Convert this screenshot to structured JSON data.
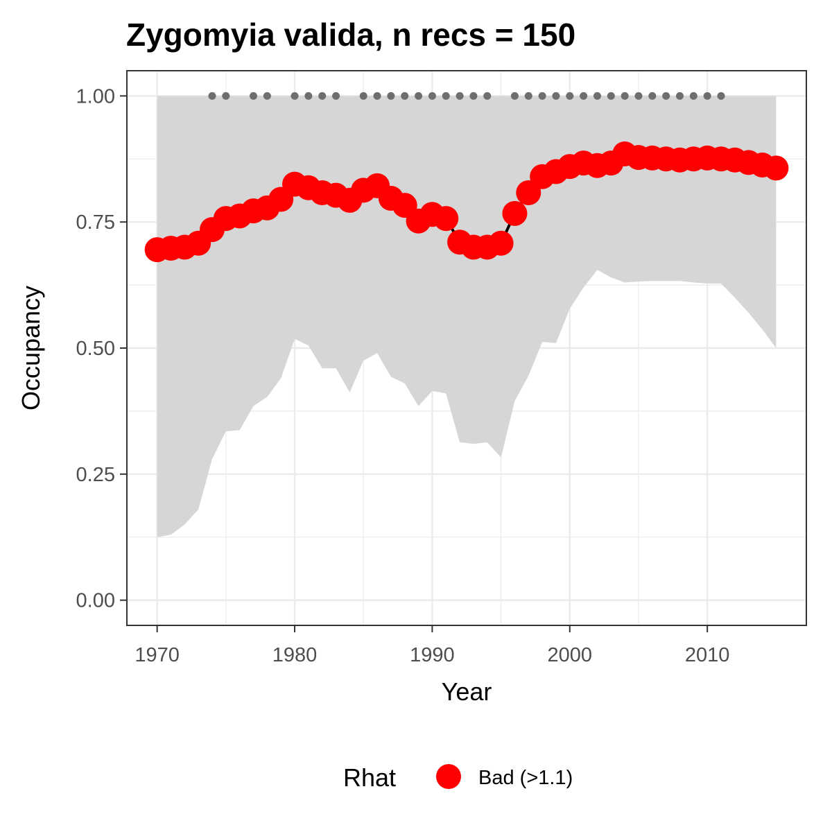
{
  "chart_data": {
    "type": "line",
    "title": "Zygomyia valida, n recs = 150",
    "xlabel": "Year",
    "ylabel": "Occupancy",
    "xlim": [
      1967.8,
      2017.2
    ],
    "ylim": [
      -0.05,
      1.05
    ],
    "x_ticks": [
      1970,
      1980,
      1990,
      2000,
      2010
    ],
    "x_tick_labels": [
      "1970",
      "1980",
      "1990",
      "2000",
      "2010"
    ],
    "y_ticks": [
      0,
      0.25,
      0.5,
      0.75,
      1.0
    ],
    "y_tick_labels": [
      "0.00",
      "0.25",
      "0.50",
      "0.75",
      "1.00"
    ],
    "grid": true,
    "years": [
      1970,
      1971,
      1972,
      1973,
      1974,
      1975,
      1976,
      1977,
      1978,
      1979,
      1980,
      1981,
      1982,
      1983,
      1984,
      1985,
      1986,
      1987,
      1988,
      1989,
      1990,
      1991,
      1992,
      1993,
      1994,
      1995,
      1996,
      1997,
      1998,
      1999,
      2000,
      2001,
      2002,
      2003,
      2004,
      2005,
      2006,
      2007,
      2008,
      2009,
      2010,
      2011,
      2012,
      2013,
      2014,
      2015
    ],
    "occupancy": [
      0.695,
      0.698,
      0.7,
      0.708,
      0.735,
      0.757,
      0.762,
      0.772,
      0.778,
      0.795,
      0.825,
      0.818,
      0.808,
      0.803,
      0.793,
      0.813,
      0.822,
      0.797,
      0.783,
      0.752,
      0.765,
      0.757,
      0.71,
      0.7,
      0.7,
      0.708,
      0.767,
      0.808,
      0.84,
      0.85,
      0.86,
      0.867,
      0.862,
      0.867,
      0.885,
      0.878,
      0.877,
      0.875,
      0.873,
      0.875,
      0.877,
      0.875,
      0.873,
      0.868,
      0.863,
      0.857
    ],
    "lower": [
      0.125,
      0.13,
      0.15,
      0.18,
      0.28,
      0.335,
      0.337,
      0.385,
      0.403,
      0.44,
      0.518,
      0.505,
      0.46,
      0.46,
      0.412,
      0.475,
      0.49,
      0.443,
      0.43,
      0.385,
      0.415,
      0.41,
      0.313,
      0.31,
      0.313,
      0.283,
      0.395,
      0.445,
      0.512,
      0.51,
      0.578,
      0.62,
      0.655,
      0.64,
      0.63,
      0.632,
      0.633,
      0.633,
      0.633,
      0.63,
      0.628,
      0.628,
      0.6,
      0.57,
      0.537,
      0.5
    ],
    "upper": [
      1,
      1,
      1,
      1,
      1,
      1,
      1,
      1,
      1,
      1,
      1,
      1,
      1,
      1,
      1,
      1,
      1,
      1,
      1,
      1,
      1,
      1,
      1,
      1,
      1,
      1,
      1,
      1,
      1,
      1,
      1,
      1,
      1,
      1,
      1,
      1,
      1,
      1,
      1,
      1,
      1,
      1,
      1,
      1,
      1,
      1
    ],
    "record_years": [
      1974,
      1975,
      1977,
      1978,
      1980,
      1981,
      1982,
      1983,
      1985,
      1986,
      1987,
      1988,
      1989,
      1990,
      1991,
      1992,
      1993,
      1994,
      1996,
      1997,
      1998,
      1999,
      2000,
      2001,
      2002,
      2003,
      2004,
      2005,
      2006,
      2007,
      2008,
      2009,
      2010,
      2011
    ],
    "record_value": 1.0,
    "legend": {
      "title": "Rhat",
      "entries": [
        "Bad (>1.1)"
      ],
      "placement": "bottom"
    },
    "colors": {
      "point": "#ff0000",
      "line": "#000000",
      "ribbon": "#d6d6d6",
      "record_dots": "#6e6e6e",
      "grid": "#ebebeb",
      "panel_border": "#333333"
    }
  }
}
